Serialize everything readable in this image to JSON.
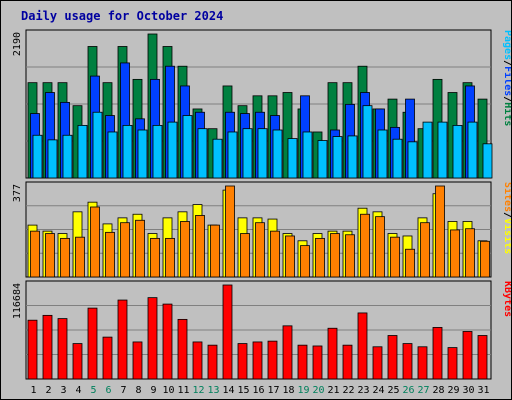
{
  "chart_data": {
    "type": "bar",
    "title": "Daily usage for October 2024",
    "days": [
      "1",
      "2",
      "3",
      "4",
      "5",
      "6",
      "7",
      "8",
      "9",
      "10",
      "11",
      "12",
      "13",
      "14",
      "15",
      "16",
      "17",
      "18",
      "19",
      "20",
      "21",
      "22",
      "23",
      "24",
      "25",
      "26",
      "27",
      "28",
      "29",
      "30",
      "31"
    ],
    "weekend_days": [
      "5",
      "6",
      "12",
      "13",
      "19",
      "20",
      "26",
      "27"
    ],
    "panels": [
      {
        "name": "hits-files-pages",
        "y_max_label": "2190",
        "y_max": 2190,
        "series": [
          {
            "name": "Hits",
            "color": "#008040",
            "values": [
              1450,
              1450,
              1450,
              1100,
              2000,
              1450,
              2000,
              1500,
              2190,
              2000,
              1700,
              1050,
              750,
              1400,
              1100,
              1250,
              1250,
              1300,
              1050,
              700,
              1450,
              1450,
              1700,
              1050,
              1200,
              1000,
              750,
              1500,
              1300,
              1450,
              1200
            ]
          },
          {
            "name": "Files",
            "color": "#0040ff",
            "values": [
              980,
              1300,
              1150,
              0,
              1550,
              950,
              1750,
              900,
              1500,
              1700,
              1400,
              1000,
              0,
              1000,
              980,
              1000,
              950,
              0,
              1250,
              0,
              730,
              1120,
              1300,
              1050,
              770,
              1200,
              0,
              0,
              0,
              1400,
              0
            ]
          },
          {
            "name": "Pages",
            "color": "#00c0ff",
            "values": [
              650,
              580,
              650,
              800,
              1000,
              700,
              800,
              730,
              800,
              850,
              950,
              750,
              590,
              700,
              750,
              750,
              730,
              600,
              700,
              570,
              630,
              640,
              1100,
              730,
              590,
              550,
              850,
              850,
              800,
              850,
              520
            ]
          }
        ]
      },
      {
        "name": "sites-visits",
        "y_max_label": "377",
        "y_max": 377,
        "series": [
          {
            "name": "Visits",
            "color": "#ffff00",
            "values": [
              215,
              190,
              180,
              270,
              310,
              220,
              245,
              260,
              180,
              245,
              270,
              300,
              215,
              360,
              245,
              245,
              240,
              180,
              150,
              180,
              190,
              190,
              285,
              270,
              180,
              170,
              245,
              345,
              230,
              230,
              150
            ]
          },
          {
            "name": "Sites",
            "color": "#ff8000",
            "values": [
              190,
              180,
              160,
              165,
              290,
              185,
              225,
              235,
              160,
              160,
              230,
              255,
              215,
              377,
              180,
              225,
              190,
              170,
              130,
              160,
              180,
              175,
              260,
              250,
              165,
              115,
              225,
              377,
              195,
              200,
              148
            ]
          }
        ]
      },
      {
        "name": "kbytes",
        "y_max_label": "116684",
        "y_max": 116684,
        "series": [
          {
            "name": "KBytes",
            "color": "#ff0000",
            "values": [
              73000,
              79000,
              75000,
              44000,
              88000,
              52000,
              98000,
              46000,
              101000,
              93000,
              74000,
              46000,
              42000,
              116684,
              44000,
              46000,
              47000,
              66000,
              42000,
              41000,
              63000,
              42000,
              82000,
              40000,
              54000,
              44000,
              40000,
              64000,
              39000,
              59000,
              54000
            ]
          }
        ]
      }
    ],
    "side_labels": [
      {
        "parts": [
          {
            "text": "Pages",
            "color": "#00c0ff"
          },
          {
            "text": "/",
            "color": "#000000"
          },
          {
            "text": "Files",
            "color": "#0040ff"
          },
          {
            "text": "/",
            "color": "#000000"
          },
          {
            "text": "Hits",
            "color": "#008040"
          }
        ]
      },
      {
        "parts": [
          {
            "text": "Sites",
            "color": "#ff8000"
          },
          {
            "text": "/",
            "color": "#000000"
          },
          {
            "text": "Visits",
            "color": "#ffff00"
          }
        ]
      },
      {
        "parts": [
          {
            "text": "KBytes",
            "color": "#ff0000"
          }
        ]
      }
    ],
    "colors": {
      "background": "#c0c0c0",
      "grid": "#808080",
      "title": "#0000a0",
      "weekday_tick": "#000000",
      "weekend_tick": "#00805c"
    }
  }
}
